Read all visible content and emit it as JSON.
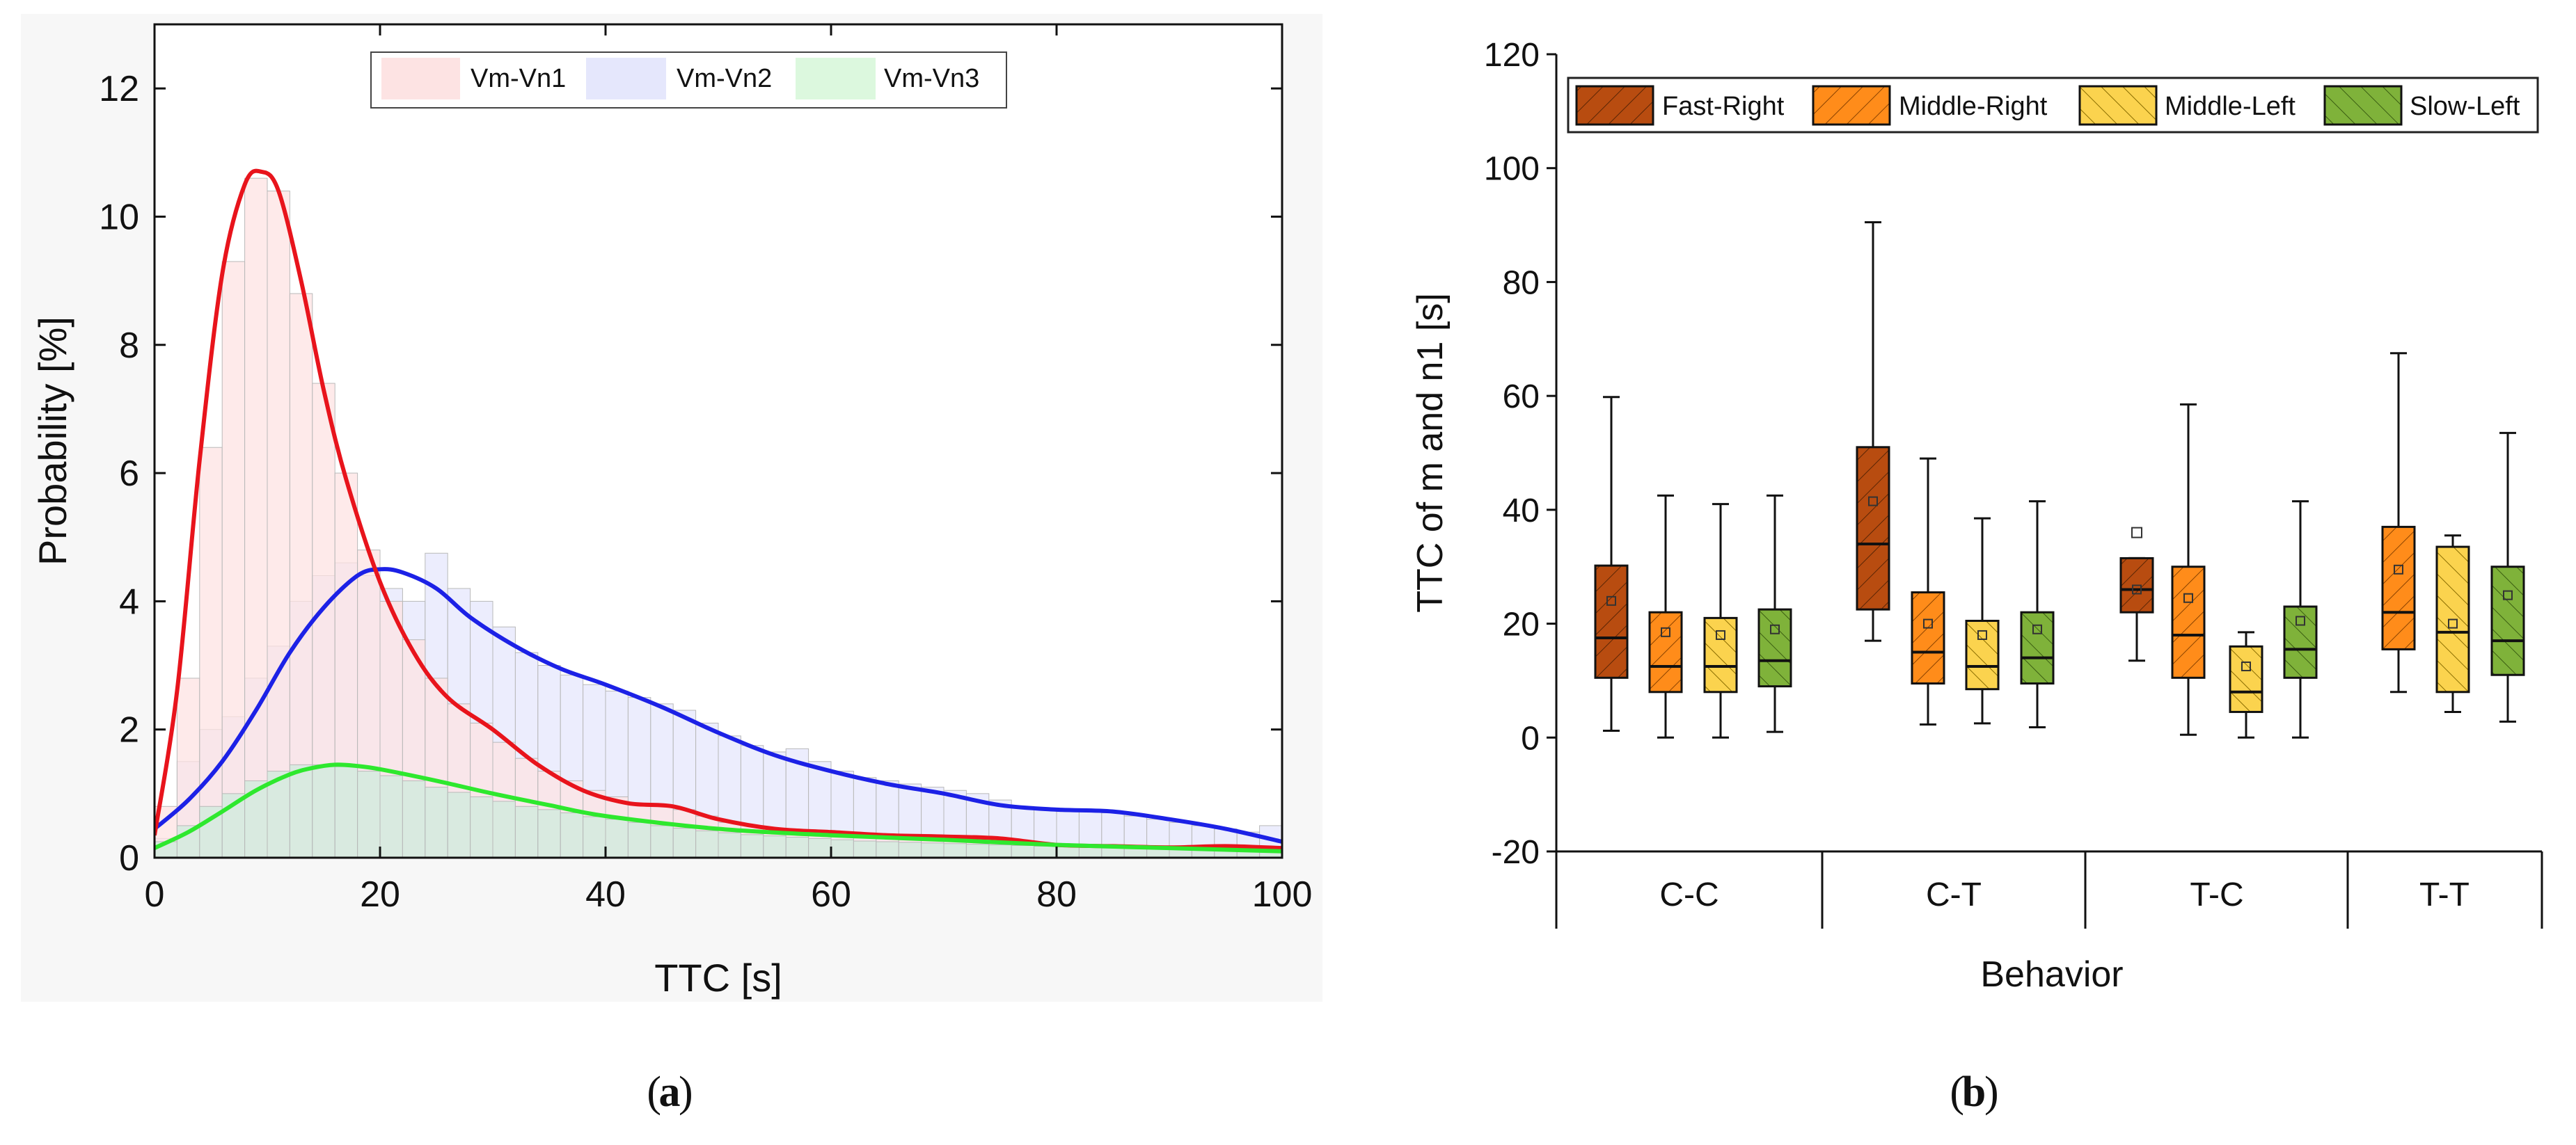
{
  "chart_data": [
    {
      "panel": "a",
      "type": "histogram+density",
      "title": "",
      "caption_label": "a",
      "xlabel": "TTC [s]",
      "ylabel": "Probability [%]",
      "xlim": [
        0,
        100
      ],
      "ylim": [
        0,
        13
      ],
      "xticks": [
        0,
        20,
        40,
        60,
        80,
        100
      ],
      "yticks": [
        0,
        2,
        4,
        6,
        8,
        10,
        12
      ],
      "legend_position": "top-center",
      "bin_edges": [
        0,
        2,
        4,
        6,
        8,
        10,
        12,
        14,
        16,
        18,
        20,
        22,
        24,
        26,
        28,
        30,
        32,
        34,
        36,
        38,
        40,
        42,
        44,
        46,
        48,
        50,
        52,
        54,
        56,
        58,
        60,
        62,
        64,
        66,
        68,
        70,
        72,
        74,
        76,
        78,
        80,
        82,
        84,
        86,
        88,
        90,
        92,
        94,
        96,
        98,
        100
      ],
      "series": [
        {
          "name": "Vm-Vn1",
          "line_color": "#e8141c",
          "fill_color": "#fde3e3",
          "histogram": [
            0.8,
            2.8,
            6.4,
            9.3,
            10.6,
            10.4,
            8.8,
            7.4,
            6.0,
            4.8,
            4.0,
            3.4,
            2.8,
            2.4,
            2.1,
            1.8,
            1.55,
            1.35,
            1.2,
            1.05,
            0.95,
            0.85,
            0.8,
            0.75,
            0.65,
            0.55,
            0.5,
            0.45,
            0.42,
            0.4,
            0.38,
            0.36,
            0.34,
            0.32,
            0.3,
            0.28,
            0.26,
            0.24,
            0.22,
            0.2,
            0.19,
            0.18,
            0.18,
            0.17,
            0.17,
            0.16,
            0.16,
            0.15,
            0.15,
            0.14
          ],
          "density": {
            "x": [
              0,
              2,
              4,
              6,
              8,
              9.5,
              11,
              13,
              15,
              17,
              20,
              23,
              26,
              30,
              34,
              38,
              42,
              46,
              50,
              55,
              60,
              65,
              70,
              75,
              80,
              85,
              90,
              95,
              100
            ],
            "y": [
              0.35,
              2.6,
              6.2,
              9.1,
              10.5,
              10.7,
              10.4,
              9.0,
              7.3,
              5.9,
              4.3,
              3.2,
              2.5,
              2.0,
              1.45,
              1.05,
              0.85,
              0.8,
              0.6,
              0.45,
              0.4,
              0.35,
              0.33,
              0.3,
              0.2,
              0.18,
              0.16,
              0.18,
              0.15
            ]
          }
        },
        {
          "name": "Vm-Vn2",
          "line_color": "#1c21e6",
          "fill_color": "#e5e7fc",
          "histogram": [
            0.3,
            1.5,
            2.0,
            2.2,
            2.8,
            3.3,
            4.0,
            4.4,
            4.6,
            4.4,
            4.2,
            4.0,
            4.75,
            4.2,
            4.0,
            3.6,
            3.2,
            3.0,
            2.85,
            2.7,
            2.6,
            2.5,
            2.4,
            2.3,
            2.1,
            1.9,
            1.75,
            1.65,
            1.7,
            1.5,
            1.35,
            1.25,
            1.2,
            1.15,
            1.1,
            1.05,
            1.0,
            0.9,
            0.8,
            0.75,
            0.72,
            0.72,
            0.7,
            0.65,
            0.6,
            0.55,
            0.5,
            0.45,
            0.4,
            0.5
          ],
          "density": {
            "x": [
              0,
              3,
              6,
              9,
              12,
              15,
              18,
              20,
              22,
              25,
              28,
              32,
              36,
              40,
              45,
              50,
              55,
              60,
              65,
              70,
              75,
              80,
              85,
              90,
              95,
              100
            ],
            "y": [
              0.45,
              0.9,
              1.5,
              2.3,
              3.2,
              3.9,
              4.4,
              4.5,
              4.45,
              4.2,
              3.75,
              3.3,
              2.95,
              2.7,
              2.35,
              1.95,
              1.6,
              1.35,
              1.15,
              1.0,
              0.82,
              0.75,
              0.72,
              0.6,
              0.45,
              0.25
            ]
          }
        },
        {
          "name": "Vm-Vn3",
          "line_color": "#2ee82e",
          "fill_color": "#ccebdc",
          "histogram": [
            0.25,
            0.5,
            0.8,
            1.0,
            1.2,
            1.35,
            1.45,
            1.45,
            1.42,
            1.35,
            1.28,
            1.2,
            1.1,
            1.02,
            0.95,
            0.88,
            0.8,
            0.75,
            0.7,
            0.64,
            0.6,
            0.55,
            0.5,
            0.46,
            0.42,
            0.39,
            0.36,
            0.34,
            0.32,
            0.3,
            0.28,
            0.26,
            0.25,
            0.24,
            0.23,
            0.22,
            0.21,
            0.2,
            0.19,
            0.18,
            0.17,
            0.16,
            0.15,
            0.15,
            0.14,
            0.13,
            0.12,
            0.12,
            0.11,
            0.1
          ],
          "density": {
            "x": [
              0,
              3,
              6,
              9,
              12,
              14,
              16,
              18,
              20,
              25,
              30,
              35,
              40,
              50,
              60,
              70,
              80,
              90,
              100
            ],
            "y": [
              0.15,
              0.4,
              0.72,
              1.05,
              1.3,
              1.4,
              1.45,
              1.43,
              1.38,
              1.2,
              1.0,
              0.82,
              0.65,
              0.45,
              0.35,
              0.28,
              0.2,
              0.15,
              0.1
            ]
          }
        }
      ]
    },
    {
      "panel": "b",
      "type": "boxplot",
      "title": "",
      "caption_label": "b",
      "xlabel": "Behavior",
      "ylabel": "TTC of m and n1 [s]",
      "ylim": [
        -20,
        120
      ],
      "yticks": [
        -20,
        0,
        20,
        40,
        60,
        80,
        100,
        120
      ],
      "legend_position": "top",
      "groups": [
        "C-C",
        "C-T",
        "T-C",
        "T-T"
      ],
      "series": [
        {
          "name": "Fast-Right",
          "color": "#b84c10",
          "boxes": [
            {
              "group": "C-C",
              "whisker_low": 1.2,
              "q1": 10.5,
              "median": 17.5,
              "q3": 30.2,
              "whisker_high": 59.8,
              "mean": 24.0
            },
            {
              "group": "C-T",
              "whisker_low": 17.0,
              "q1": 22.5,
              "median": 34.0,
              "q3": 51.0,
              "whisker_high": 90.5,
              "mean": 41.5
            },
            {
              "group": "T-C",
              "whisker_low": 13.5,
              "q1": 22.0,
              "median": 26.0,
              "q3": 31.5,
              "whisker_high": 31.5,
              "mean": 26.0,
              "outlier": 36.0
            },
            null
          ]
        },
        {
          "name": "Middle-Right",
          "color": "#ff8c1a",
          "boxes": [
            {
              "group": "C-C",
              "whisker_low": 0.0,
              "q1": 8.0,
              "median": 12.5,
              "q3": 22.0,
              "whisker_high": 42.5,
              "mean": 18.5
            },
            {
              "group": "C-T",
              "whisker_low": 2.3,
              "q1": 9.5,
              "median": 15.0,
              "q3": 25.5,
              "whisker_high": 49.0,
              "mean": 20.0
            },
            {
              "group": "T-C",
              "whisker_low": 0.5,
              "q1": 10.5,
              "median": 18.0,
              "q3": 30.0,
              "whisker_high": 58.5,
              "mean": 24.5
            },
            {
              "group": "T-T",
              "whisker_low": 8.0,
              "q1": 15.5,
              "median": 22.0,
              "q3": 37.0,
              "whisker_high": 67.5,
              "mean": 29.5
            }
          ]
        },
        {
          "name": "Middle-Left",
          "color": "#fbd34e",
          "boxes": [
            {
              "group": "C-C",
              "whisker_low": 0.0,
              "q1": 8.0,
              "median": 12.5,
              "q3": 21.0,
              "whisker_high": 41.0,
              "mean": 18.0
            },
            {
              "group": "C-T",
              "whisker_low": 2.5,
              "q1": 8.5,
              "median": 12.5,
              "q3": 20.5,
              "whisker_high": 38.5,
              "mean": 18.0
            },
            {
              "group": "T-C",
              "whisker_low": 0.0,
              "q1": 4.5,
              "median": 8.0,
              "q3": 16.0,
              "whisker_high": 18.5,
              "mean": 12.5
            },
            {
              "group": "T-T",
              "whisker_low": 4.5,
              "q1": 8.0,
              "median": 18.5,
              "q3": 33.5,
              "whisker_high": 35.5,
              "mean": 20.0
            }
          ]
        },
        {
          "name": "Slow-Left",
          "color": "#7fb23a",
          "boxes": [
            {
              "group": "C-C",
              "whisker_low": 1.0,
              "q1": 9.0,
              "median": 13.5,
              "q3": 22.5,
              "whisker_high": 42.5,
              "mean": 19.0
            },
            {
              "group": "C-T",
              "whisker_low": 1.8,
              "q1": 9.5,
              "median": 14.0,
              "q3": 22.0,
              "whisker_high": 41.5,
              "mean": 19.0
            },
            {
              "group": "T-C",
              "whisker_low": 0.0,
              "q1": 10.5,
              "median": 15.5,
              "q3": 23.0,
              "whisker_high": 41.5,
              "mean": 20.5
            },
            {
              "group": "T-T",
              "whisker_low": 2.8,
              "q1": 11.0,
              "median": 17.0,
              "q3": 30.0,
              "whisker_high": 53.5,
              "mean": 25.0
            }
          ]
        }
      ]
    }
  ]
}
